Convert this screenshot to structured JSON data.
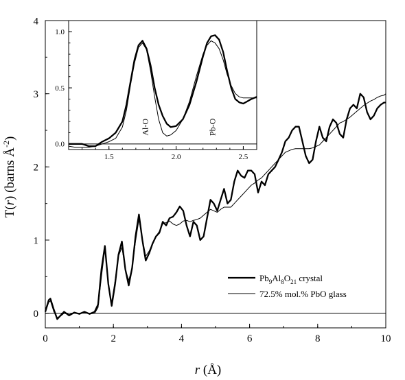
{
  "chart_data": [
    {
      "type": "line",
      "xlabel_var": "r",
      "xlabel_unit": " (Å)",
      "ylabel_pre": "T(",
      "ylabel_var": "r",
      "ylabel_post": ") (barns Å",
      "ylabel_sup": "-2",
      "ylabel_end": ")",
      "xlim": [
        0,
        10
      ],
      "ylim": [
        -0.2,
        4
      ],
      "xticks": [
        "0",
        "2",
        "4",
        "6",
        "8",
        "10"
      ],
      "yticks": [
        "0",
        "1",
        "2",
        "3",
        "4"
      ],
      "grid": false,
      "legend_position": "bottom-right",
      "series": [
        {
          "legend_parts": [
            "Pb",
            "9",
            "Al",
            "8",
            "O",
            "21",
            " crystal"
          ],
          "style": "thick",
          "x": [
            0,
            0.1,
            0.15,
            0.25,
            0.35,
            0.45,
            0.55,
            0.7,
            0.85,
            1.0,
            1.15,
            1.3,
            1.45,
            1.55,
            1.65,
            1.75,
            1.85,
            1.95,
            2.05,
            2.15,
            2.25,
            2.35,
            2.45,
            2.55,
            2.65,
            2.75,
            2.85,
            2.95,
            3.05,
            3.15,
            3.25,
            3.35,
            3.45,
            3.55,
            3.65,
            3.75,
            3.85,
            3.95,
            4.05,
            4.15,
            4.25,
            4.35,
            4.45,
            4.55,
            4.65,
            4.75,
            4.85,
            4.95,
            5.05,
            5.15,
            5.25,
            5.35,
            5.45,
            5.55,
            5.65,
            5.75,
            5.85,
            5.95,
            6.05,
            6.15,
            6.25,
            6.35,
            6.45,
            6.55,
            6.65,
            6.75,
            6.85,
            6.95,
            7.05,
            7.15,
            7.25,
            7.35,
            7.45,
            7.55,
            7.65,
            7.75,
            7.85,
            7.95,
            8.05,
            8.15,
            8.25,
            8.35,
            8.45,
            8.55,
            8.65,
            8.75,
            8.85,
            8.95,
            9.05,
            9.15,
            9.25,
            9.35,
            9.45,
            9.55,
            9.65,
            9.75,
            9.85,
            9.95,
            10.0
          ],
          "values": [
            0.02,
            0.18,
            0.2,
            0.05,
            -0.08,
            -0.03,
            0.02,
            -0.03,
            0.01,
            -0.01,
            0.02,
            -0.01,
            0.02,
            0.12,
            0.6,
            0.92,
            0.4,
            0.1,
            0.4,
            0.8,
            0.98,
            0.6,
            0.38,
            0.62,
            1.05,
            1.35,
            1.0,
            0.72,
            0.82,
            0.95,
            1.05,
            1.1,
            1.25,
            1.2,
            1.3,
            1.32,
            1.38,
            1.46,
            1.4,
            1.2,
            1.05,
            1.25,
            1.2,
            1.0,
            1.05,
            1.3,
            1.55,
            1.5,
            1.4,
            1.55,
            1.7,
            1.5,
            1.55,
            1.8,
            1.95,
            1.88,
            1.85,
            1.95,
            1.95,
            1.9,
            1.65,
            1.8,
            1.75,
            1.9,
            1.95,
            2.0,
            2.1,
            2.2,
            2.35,
            2.4,
            2.5,
            2.55,
            2.55,
            2.35,
            2.15,
            2.05,
            2.1,
            2.35,
            2.55,
            2.4,
            2.35,
            2.55,
            2.65,
            2.6,
            2.45,
            2.4,
            2.65,
            2.8,
            2.85,
            2.8,
            3.0,
            2.95,
            2.75,
            2.65,
            2.7,
            2.8,
            2.85,
            2.88,
            2.88
          ]
        },
        {
          "legend_parts": [
            "72.5% mol.% PbO glass"
          ],
          "style": "thin",
          "x": [
            0,
            0.1,
            0.15,
            0.25,
            0.35,
            0.45,
            0.55,
            0.7,
            0.85,
            1.0,
            1.15,
            1.3,
            1.45,
            1.55,
            1.65,
            1.75,
            1.85,
            1.95,
            2.05,
            2.15,
            2.25,
            2.35,
            2.45,
            2.55,
            2.65,
            2.75,
            2.85,
            2.95,
            3.05,
            3.15,
            3.25,
            3.35,
            3.45,
            3.55,
            3.65,
            3.75,
            3.85,
            3.95,
            4.05,
            4.15,
            4.25,
            4.35,
            4.45,
            4.55,
            4.65,
            4.75,
            4.85,
            4.95,
            5.05,
            5.15,
            5.25,
            5.35,
            5.45,
            5.55,
            5.65,
            5.75,
            5.85,
            5.95,
            6.05,
            6.15,
            6.25,
            6.35,
            6.45,
            6.55,
            6.65,
            6.75,
            6.85,
            6.95,
            7.05,
            7.15,
            7.25,
            7.35,
            7.45,
            7.55,
            7.65,
            7.75,
            7.85,
            7.95,
            8.05,
            8.15,
            8.25,
            8.35,
            8.45,
            8.55,
            8.65,
            8.75,
            8.85,
            8.95,
            9.05,
            9.15,
            9.25,
            9.35,
            9.45,
            9.55,
            9.65,
            9.75,
            9.85,
            9.95,
            10.0
          ],
          "values": [
            0.01,
            0.15,
            0.17,
            0.02,
            -0.06,
            -0.04,
            0.0,
            -0.02,
            0.0,
            0.0,
            0.01,
            -0.01,
            0.0,
            0.08,
            0.5,
            0.88,
            0.38,
            0.15,
            0.45,
            0.78,
            0.9,
            0.6,
            0.45,
            0.62,
            0.98,
            1.28,
            1.02,
            0.78,
            0.85,
            0.95,
            1.05,
            1.12,
            1.22,
            1.24,
            1.26,
            1.22,
            1.2,
            1.22,
            1.26,
            1.27,
            1.25,
            1.27,
            1.28,
            1.3,
            1.34,
            1.38,
            1.42,
            1.4,
            1.38,
            1.42,
            1.45,
            1.45,
            1.45,
            1.5,
            1.55,
            1.6,
            1.65,
            1.7,
            1.75,
            1.78,
            1.82,
            1.85,
            1.9,
            1.95,
            2.0,
            2.05,
            2.1,
            2.15,
            2.2,
            2.22,
            2.24,
            2.25,
            2.25,
            2.25,
            2.25,
            2.25,
            2.26,
            2.28,
            2.3,
            2.35,
            2.4,
            2.45,
            2.5,
            2.55,
            2.6,
            2.62,
            2.65,
            2.68,
            2.72,
            2.76,
            2.8,
            2.84,
            2.87,
            2.9,
            2.92,
            2.95,
            2.97,
            2.98,
            3.0
          ]
        }
      ]
    },
    {
      "type": "line",
      "inset": true,
      "xlim": [
        1.2,
        2.6
      ],
      "ylim": [
        -0.05,
        1.1
      ],
      "xticks": [
        "1.5",
        "2.0",
        "2.5"
      ],
      "yticks": [
        "0.0",
        "0.5",
        "1.0"
      ],
      "annotations": [
        {
          "text": "Al-O",
          "x": 1.77,
          "y": 0.15
        },
        {
          "text": "Pb-O",
          "x": 2.27,
          "y": 0.15
        }
      ],
      "series": [
        {
          "style": "thick",
          "x": [
            1.2,
            1.25,
            1.3,
            1.35,
            1.4,
            1.45,
            1.5,
            1.55,
            1.6,
            1.63,
            1.66,
            1.69,
            1.72,
            1.75,
            1.78,
            1.81,
            1.84,
            1.87,
            1.9,
            1.93,
            1.96,
            2.0,
            2.05,
            2.1,
            2.15,
            2.2,
            2.23,
            2.26,
            2.29,
            2.32,
            2.35,
            2.38,
            2.41,
            2.44,
            2.47,
            2.5,
            2.53,
            2.56,
            2.6
          ],
          "values": [
            0.0,
            0.0,
            0.0,
            -0.02,
            -0.02,
            0.02,
            0.05,
            0.1,
            0.2,
            0.35,
            0.55,
            0.75,
            0.88,
            0.92,
            0.85,
            0.7,
            0.5,
            0.35,
            0.25,
            0.18,
            0.15,
            0.16,
            0.22,
            0.35,
            0.55,
            0.78,
            0.9,
            0.96,
            0.97,
            0.93,
            0.82,
            0.65,
            0.5,
            0.4,
            0.37,
            0.36,
            0.38,
            0.4,
            0.42
          ]
        },
        {
          "style": "thin",
          "x": [
            1.2,
            1.25,
            1.3,
            1.35,
            1.4,
            1.45,
            1.5,
            1.55,
            1.6,
            1.63,
            1.66,
            1.69,
            1.72,
            1.75,
            1.78,
            1.81,
            1.84,
            1.87,
            1.9,
            1.93,
            1.96,
            2.0,
            2.05,
            2.1,
            2.15,
            2.2,
            2.23,
            2.26,
            2.29,
            2.32,
            2.35,
            2.38,
            2.41,
            2.44,
            2.47,
            2.5,
            2.53,
            2.56,
            2.6
          ],
          "values": [
            -0.02,
            -0.03,
            -0.03,
            -0.03,
            -0.02,
            0.0,
            0.02,
            0.05,
            0.15,
            0.3,
            0.52,
            0.72,
            0.86,
            0.9,
            0.84,
            0.65,
            0.42,
            0.22,
            0.1,
            0.07,
            0.08,
            0.12,
            0.22,
            0.38,
            0.6,
            0.8,
            0.88,
            0.92,
            0.9,
            0.85,
            0.75,
            0.62,
            0.52,
            0.45,
            0.42,
            0.41,
            0.41,
            0.41,
            0.41
          ]
        }
      ]
    }
  ]
}
